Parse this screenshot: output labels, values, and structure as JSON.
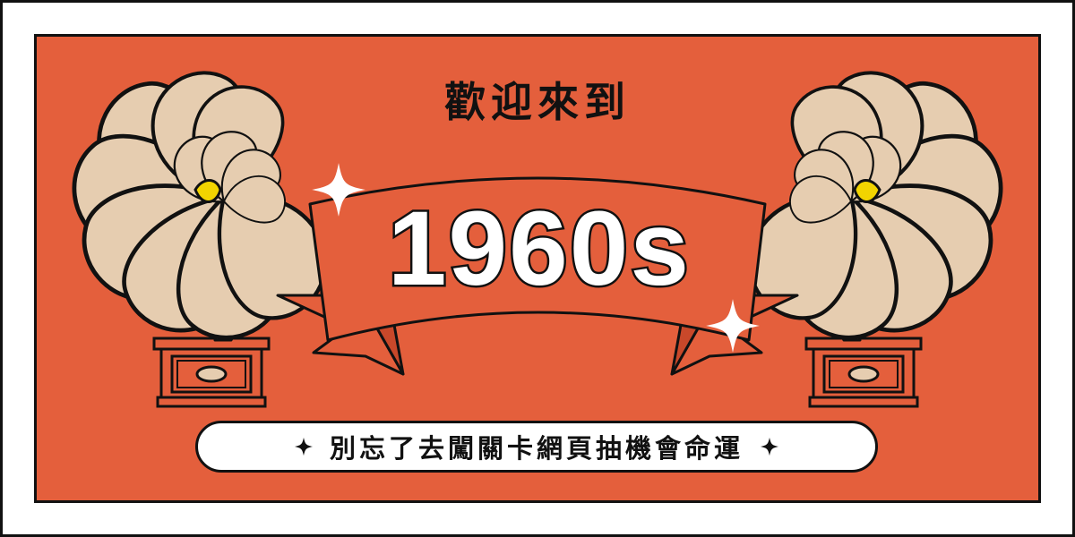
{
  "banner": {
    "headline": "歡迎來到",
    "decade": "1960s",
    "cta": "別忘了去闖關卡網頁抽機會命運"
  },
  "colors": {
    "background": "#e45f3c",
    "ribbon": "#e45f3c",
    "ribbon_fold": "#c9482a",
    "horn_petal": "#e6cdb0",
    "horn_neck": "#d6b49a",
    "horn_center": "#f2d400",
    "cabinet": "#e45f3c",
    "ink": "#111111",
    "white": "#ffffff"
  },
  "icons": {
    "left_decoration": "gramophone-icon",
    "right_decoration": "gramophone-icon",
    "sparkles": "sparkle-icon",
    "pill_left": "four-point-star-icon",
    "pill_right": "four-point-star-icon"
  }
}
